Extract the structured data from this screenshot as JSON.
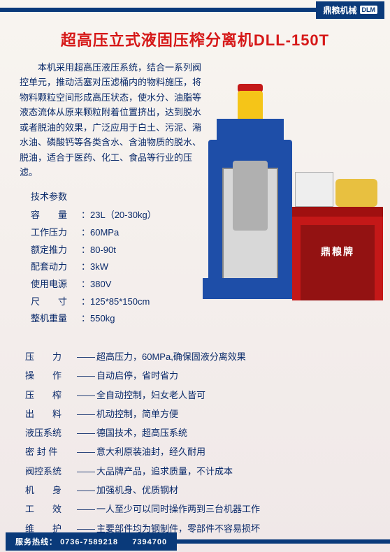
{
  "brand": {
    "name": "鼎粮机械",
    "logo": "DLM"
  },
  "title": "超高压立式液固压榨分离机DLL-150T",
  "intro": "本机采用超高压液压系统，结合一系列阀控单元，推动活塞对压滤桶内的物料施压，将物料颗粒空间形成高压状态，使水分、油脂等液态流体从原来颗粒附着位置挤出，达到脱水或者脱油的效果，广泛应用于白土、污泥、潲水油、磷酸钙等各类含水、含油物质的脱水、脱油，适合于医药、化工、食品等行业的压滤。",
  "specs": {
    "heading": "技术参数",
    "items": [
      {
        "label": "容　　量",
        "value": "：23L（20-30kg）"
      },
      {
        "label": "工作压力",
        "value": "：60MPa"
      },
      {
        "label": "额定推力",
        "value": "：80-90t"
      },
      {
        "label": "配套动力",
        "value": "：3kW"
      },
      {
        "label": "使用电源",
        "value": "：380V"
      },
      {
        "label": "尺　　寸",
        "value": "：125*85*150cm"
      },
      {
        "label": "整机重量",
        "value": "：550kg"
      }
    ]
  },
  "features": [
    {
      "label": "压　　力",
      "text": "超高压力，60MPa,确保固液分离效果"
    },
    {
      "label": "操　　作",
      "text": "自动启停，省时省力"
    },
    {
      "label": "压　　榨",
      "text": "全自动控制，妇女老人皆可"
    },
    {
      "label": "出　　料",
      "text": "机动控制，简单方便"
    },
    {
      "label": "液压系统",
      "text": "德国技术，超高压系统"
    },
    {
      "label": "密 封 件",
      "text": "意大利原装油封，经久耐用"
    },
    {
      "label": "阀控系统",
      "text": "大品牌产品，追求质量，不计成本"
    },
    {
      "label": "机　　身",
      "text": "加强机身、优质钢材"
    },
    {
      "label": "工　　效",
      "text": "一人至少可以同时操作两到三台机器工作"
    },
    {
      "label": "维　　护",
      "text": "主要部件均为钢制件，零部件不容易损坏"
    }
  ],
  "feature_sep": "——",
  "hotline": {
    "label": "服务热线：",
    "num1": "0736-7589218",
    "num2": "7394700"
  },
  "pump_brand": "鼎粮牌",
  "colors": {
    "navy": "#0a3a7a",
    "red_title": "#d61818",
    "body_text": "#0a2a6a",
    "machine_blue": "#1e4ea8",
    "machine_red": "#c41818",
    "yellow": "#f5c518"
  }
}
